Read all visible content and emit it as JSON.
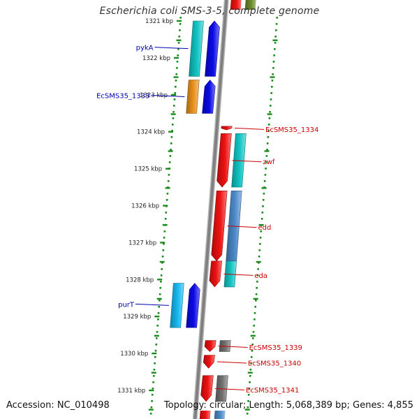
{
  "title": "Escherichia coli SMS-3-5, complete genome",
  "footer": {
    "accession": "Accession: NC_010498",
    "summary": "Topology: circular; Length: 5,068,389 bp; Genes: 4,855"
  },
  "colors": {
    "tick": "#1a8a1a",
    "backbone": "#808080",
    "label_left": "#0000b0",
    "label_right": "#cc0000",
    "cyan": "#12c4c4",
    "blue": "#0a0ae6",
    "orange": "#e8901a",
    "red": "#ee1111",
    "skyblue": "#16b8f0",
    "steel": "#4a88c8",
    "gray": "#707070",
    "olive": "#6a8a2a"
  },
  "scale": {
    "unit": "kbp",
    "ticks": [
      {
        "kbp": 1321,
        "label": "1321 kbp"
      },
      {
        "kbp": 1322,
        "label": "1322 kbp"
      },
      {
        "kbp": 1323,
        "label": "1323 kbp"
      },
      {
        "kbp": 1324,
        "label": "1324 kbp"
      },
      {
        "kbp": 1325,
        "label": "1325 kbp"
      },
      {
        "kbp": 1326,
        "label": "1326 kbp"
      },
      {
        "kbp": 1327,
        "label": "1327 kbp"
      },
      {
        "kbp": 1328,
        "label": "1328 kbp"
      },
      {
        "kbp": 1329,
        "label": "1329 kbp"
      },
      {
        "kbp": 1330,
        "label": "1330 kbp"
      },
      {
        "kbp": 1331,
        "label": "1331 kbp"
      }
    ]
  },
  "genes": [
    {
      "label": "pykA",
      "side": "left",
      "start": 1321.0,
      "end": 1322.5,
      "color": "cyan",
      "lane": -2
    },
    {
      "label": "",
      "start": 1321.0,
      "end": 1322.5,
      "color": "blue",
      "lane": -1,
      "arrow": "up"
    },
    {
      "label": "EcSMS35_1333",
      "side": "left",
      "start": 1322.6,
      "end": 1323.5,
      "color": "orange",
      "lane": -2
    },
    {
      "label": "",
      "start": 1322.6,
      "end": 1323.5,
      "color": "blue",
      "lane": -1,
      "arrow": "up"
    },
    {
      "label": "EcSMS35_1334",
      "side": "right",
      "start": 1323.85,
      "end": 1323.95,
      "color": "red",
      "lane": 1,
      "arrow": "down"
    },
    {
      "label": "zwf",
      "side": "right",
      "start": 1324.05,
      "end": 1325.5,
      "color": "red",
      "lane": 1,
      "arrow": "down"
    },
    {
      "label": "",
      "start": 1324.05,
      "end": 1325.5,
      "color": "cyan",
      "lane": 2
    },
    {
      "label": "edd",
      "side": "right",
      "start": 1325.6,
      "end": 1327.5,
      "color": "red",
      "lane": 1,
      "arrow": "down"
    },
    {
      "label": "",
      "start": 1325.6,
      "end": 1327.5,
      "color": "steel",
      "lane": 2
    },
    {
      "label": "eda",
      "side": "right",
      "start": 1327.5,
      "end": 1328.2,
      "color": "red",
      "lane": 1,
      "arrow": "down"
    },
    {
      "label": "",
      "start": 1327.5,
      "end": 1328.2,
      "color": "cyan",
      "lane": 2
    },
    {
      "label": "purT",
      "side": "left",
      "start": 1328.1,
      "end": 1329.3,
      "color": "skyblue",
      "lane": -2
    },
    {
      "label": "",
      "start": 1328.1,
      "end": 1329.3,
      "color": "blue",
      "lane": -1,
      "arrow": "up"
    },
    {
      "label": "EcSMS35_1339",
      "side": "right",
      "start": 1329.65,
      "end": 1329.95,
      "color": "red",
      "lane": 1,
      "arrow": "down"
    },
    {
      "label": "",
      "start": 1329.65,
      "end": 1329.95,
      "color": "gray",
      "lane": 2
    },
    {
      "label": "EcSMS35_1340",
      "side": "right",
      "start": 1330.05,
      "end": 1330.4,
      "color": "red",
      "lane": 1,
      "arrow": "down"
    },
    {
      "label": "EcSMS35_1341",
      "side": "right",
      "start": 1330.6,
      "end": 1331.3,
      "color": "red",
      "lane": 1,
      "arrow": "down"
    },
    {
      "label": "",
      "start": 1330.6,
      "end": 1331.3,
      "color": "gray",
      "lane": 2
    }
  ]
}
